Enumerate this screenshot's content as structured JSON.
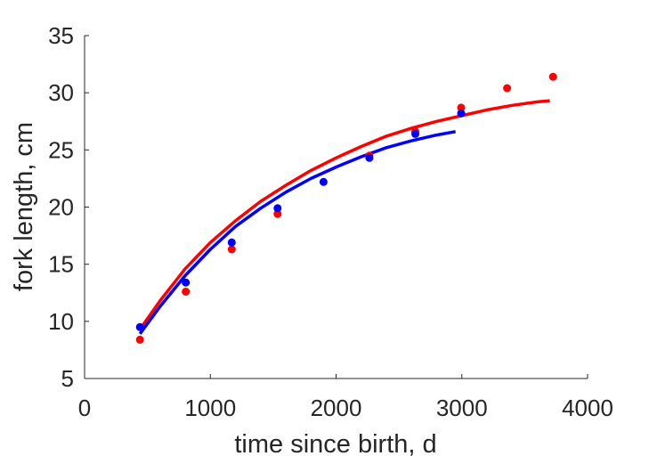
{
  "chart_data": {
    "type": "scatter",
    "xlabel": "time since birth, d",
    "ylabel": "fork length, cm",
    "xlim": [
      0,
      4000
    ],
    "ylim": [
      5,
      35
    ],
    "xticks": [
      0,
      1000,
      2000,
      3000,
      4000
    ],
    "yticks": [
      5,
      10,
      15,
      20,
      25,
      30,
      35
    ],
    "grid": false,
    "legend": "none",
    "box": "left-bottom axes only",
    "series": [
      {
        "kind": "scatter",
        "color": "#ff0000",
        "points": [
          {
            "x": 440,
            "y": 8.4
          },
          {
            "x": 805,
            "y": 12.6
          },
          {
            "x": 1170,
            "y": 16.3
          },
          {
            "x": 1535,
            "y": 19.4
          },
          {
            "x": 2265,
            "y": 24.5
          },
          {
            "x": 2630,
            "y": 26.6
          },
          {
            "x": 2995,
            "y": 28.7
          },
          {
            "x": 3360,
            "y": 30.4
          },
          {
            "x": 3725,
            "y": 31.4
          }
        ]
      },
      {
        "kind": "scatter",
        "color": "#0000ff",
        "points": [
          {
            "x": 440,
            "y": 9.5
          },
          {
            "x": 805,
            "y": 13.4
          },
          {
            "x": 1170,
            "y": 16.9
          },
          {
            "x": 1535,
            "y": 19.9
          },
          {
            "x": 1900,
            "y": 22.2
          },
          {
            "x": 2265,
            "y": 24.3
          },
          {
            "x": 2630,
            "y": 26.4
          },
          {
            "x": 2995,
            "y": 28.2
          }
        ]
      },
      {
        "kind": "line",
        "color": "#ff0000",
        "points": [
          {
            "x": 440,
            "y": 9.3
          },
          {
            "x": 600,
            "y": 11.8
          },
          {
            "x": 800,
            "y": 14.6
          },
          {
            "x": 1000,
            "y": 16.9
          },
          {
            "x": 1200,
            "y": 18.8
          },
          {
            "x": 1400,
            "y": 20.5
          },
          {
            "x": 1600,
            "y": 21.9
          },
          {
            "x": 1800,
            "y": 23.2
          },
          {
            "x": 2000,
            "y": 24.3
          },
          {
            "x": 2200,
            "y": 25.3
          },
          {
            "x": 2400,
            "y": 26.2
          },
          {
            "x": 2600,
            "y": 26.9
          },
          {
            "x": 2800,
            "y": 27.5
          },
          {
            "x": 3000,
            "y": 28.0
          },
          {
            "x": 3200,
            "y": 28.5
          },
          {
            "x": 3400,
            "y": 28.9
          },
          {
            "x": 3600,
            "y": 29.2
          },
          {
            "x": 3700,
            "y": 29.3
          }
        ]
      },
      {
        "kind": "line",
        "color": "#0000ff",
        "points": [
          {
            "x": 440,
            "y": 8.9
          },
          {
            "x": 600,
            "y": 11.3
          },
          {
            "x": 800,
            "y": 14.0
          },
          {
            "x": 1000,
            "y": 16.3
          },
          {
            "x": 1200,
            "y": 18.3
          },
          {
            "x": 1400,
            "y": 19.9
          },
          {
            "x": 1600,
            "y": 21.3
          },
          {
            "x": 1800,
            "y": 22.5
          },
          {
            "x": 2000,
            "y": 23.5
          },
          {
            "x": 2200,
            "y": 24.4
          },
          {
            "x": 2400,
            "y": 25.2
          },
          {
            "x": 2600,
            "y": 25.8
          },
          {
            "x": 2800,
            "y": 26.3
          },
          {
            "x": 2950,
            "y": 26.6
          }
        ]
      }
    ]
  }
}
